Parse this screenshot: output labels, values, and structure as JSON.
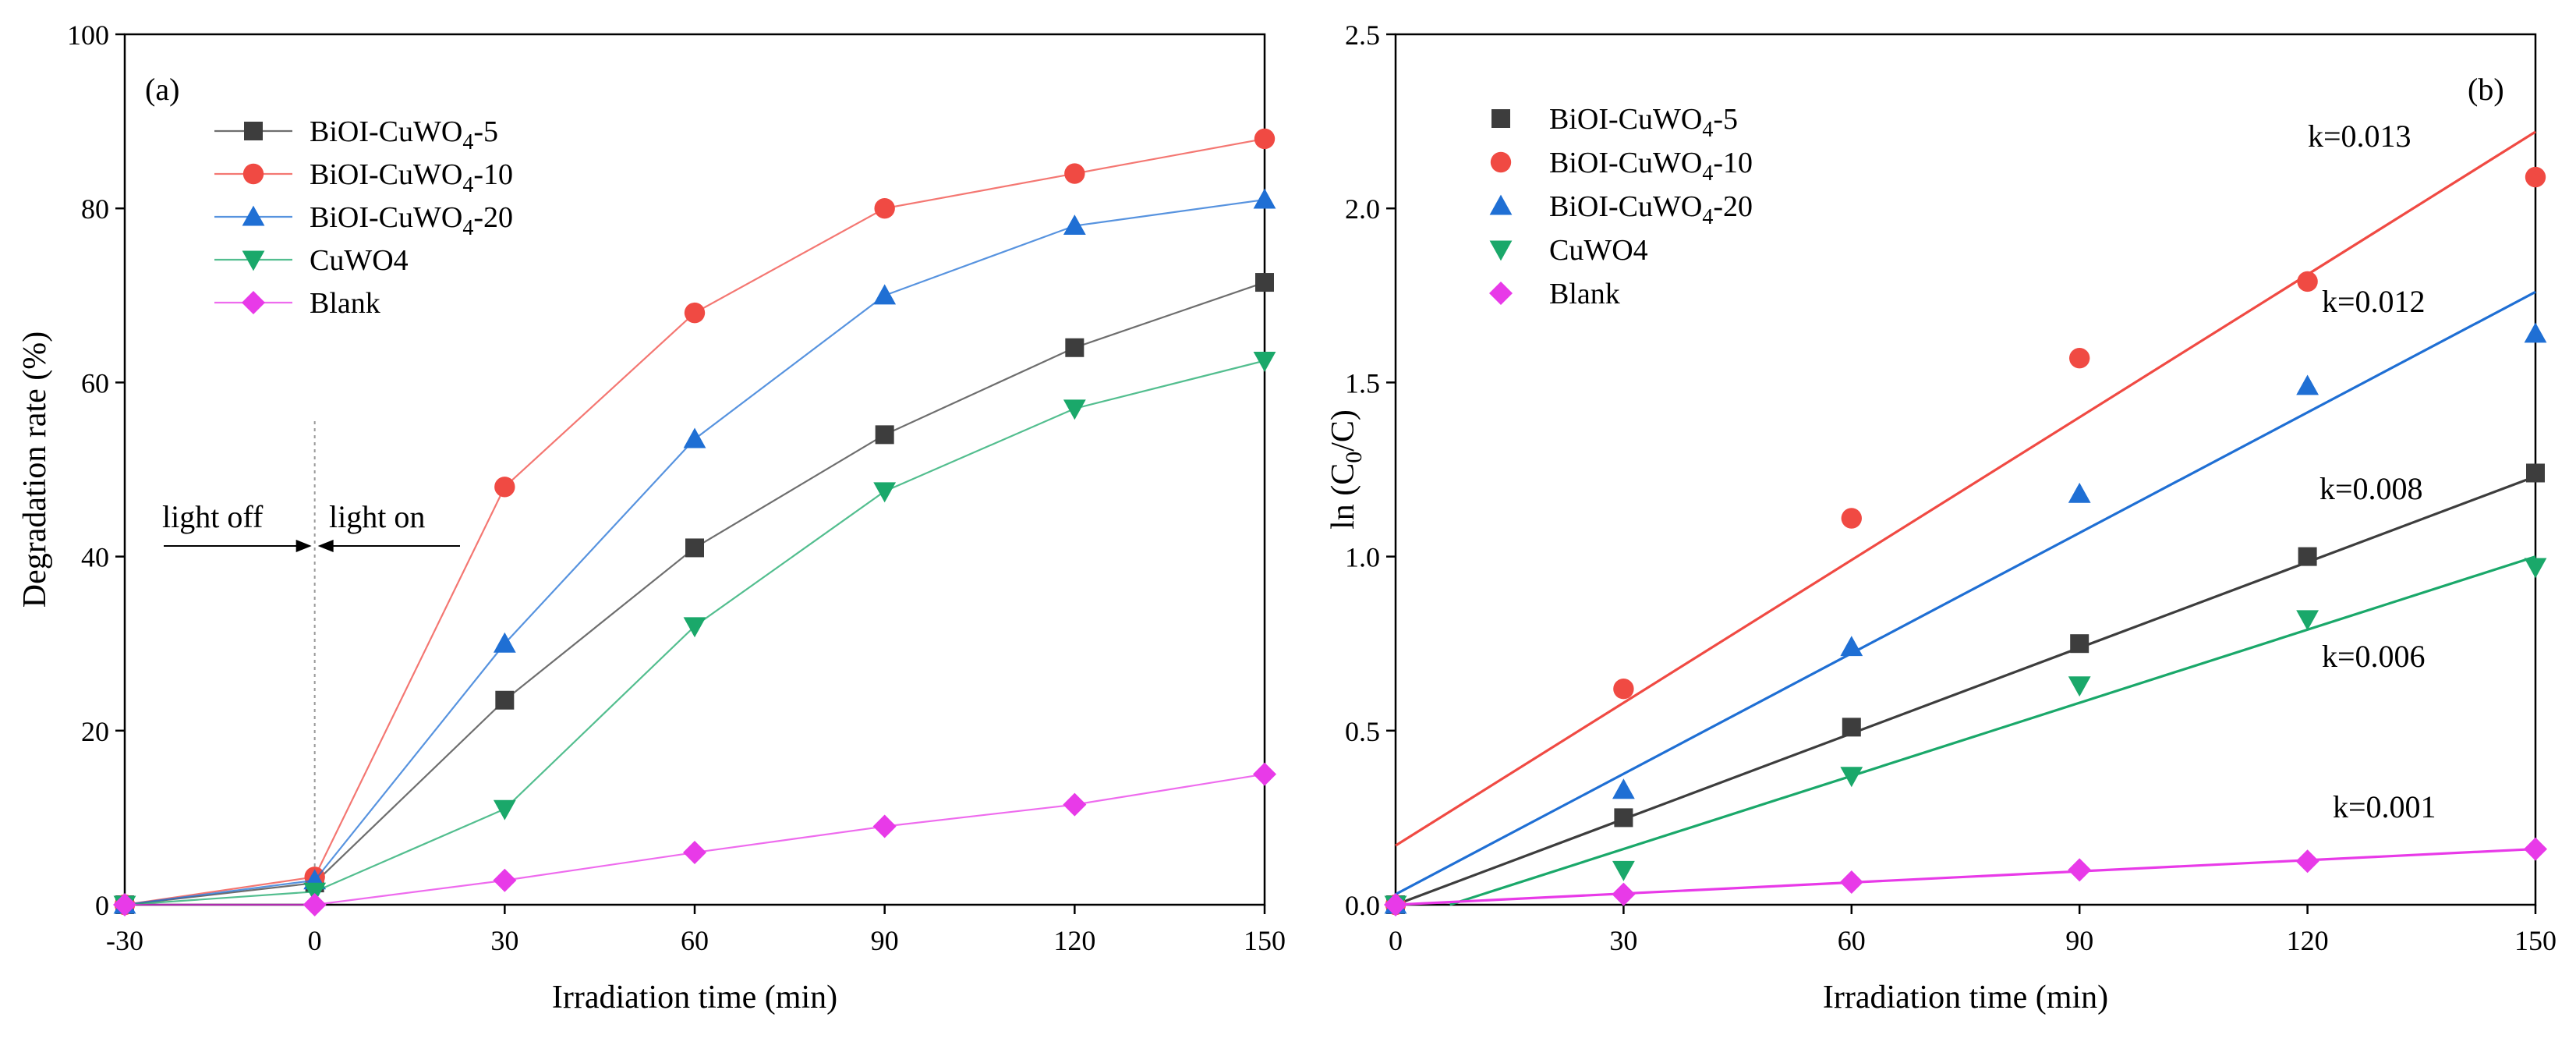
{
  "chart_data": [
    {
      "type": "line",
      "panel_label": "(a)",
      "xlabel": "Irradiation time (min)",
      "ylabel": "Degradation rate (%)",
      "xlim": [
        -30,
        150
      ],
      "ylim": [
        0,
        100
      ],
      "xticks": [
        -30,
        0,
        30,
        60,
        90,
        120,
        150
      ],
      "yticks": [
        0,
        20,
        40,
        60,
        80,
        100
      ],
      "x": [
        -30,
        0,
        30,
        60,
        90,
        120,
        150
      ],
      "series": [
        {
          "name": "BiOI-CuWO",
          "sub": "4",
          "suffix": "-5",
          "marker": "square",
          "color": "#3d3d3d",
          "values": [
            0,
            2.5,
            23.5,
            41,
            54,
            64,
            71.5
          ]
        },
        {
          "name": "BiOI-CuWO",
          "sub": "4",
          "suffix": "-10",
          "marker": "circle",
          "color": "#f04a43",
          "values": [
            0,
            3.2,
            48,
            68,
            80,
            84,
            88
          ]
        },
        {
          "name": "BiOI-CuWO",
          "sub": "4",
          "suffix": "-20",
          "marker": "triangle-up",
          "color": "#1f6fd4",
          "values": [
            0,
            2.8,
            30,
            53.5,
            70,
            78,
            81
          ]
        },
        {
          "name": "CuWO4",
          "sub": "",
          "suffix": "",
          "marker": "triangle-down",
          "color": "#1aa86a",
          "values": [
            0,
            1.5,
            11,
            32,
            47.5,
            57,
            62.5
          ]
        },
        {
          "name": "Blank",
          "sub": "",
          "suffix": "",
          "marker": "diamond",
          "color": "#e83ae8",
          "values": [
            0,
            0,
            2.8,
            6,
            9,
            11.5,
            15
          ]
        }
      ],
      "annotations": {
        "light_off": "light off",
        "light_on": "light on"
      }
    },
    {
      "type": "scatter",
      "panel_label": "(b)",
      "xlabel": "Irradiation time (min)",
      "ylabel_main": "ln (C",
      "ylabel_sub": "0",
      "ylabel_end": "/C)",
      "xlim": [
        0,
        150
      ],
      "ylim": [
        0,
        2.5
      ],
      "xticks": [
        0,
        30,
        60,
        90,
        120,
        150
      ],
      "yticks": [
        0.0,
        0.5,
        1.0,
        1.5,
        2.0,
        2.5
      ],
      "x": [
        0,
        30,
        60,
        90,
        120,
        150
      ],
      "series": [
        {
          "name": "BiOI-CuWO",
          "sub": "4",
          "suffix": "-5",
          "marker": "square",
          "color": "#3d3d3d",
          "values": [
            0,
            0.25,
            0.51,
            0.75,
            1.0,
            1.24
          ],
          "fit": [
            0.0,
            1.23
          ],
          "k": "k=0.008"
        },
        {
          "name": "BiOI-CuWO",
          "sub": "4",
          "suffix": "-10",
          "marker": "circle",
          "color": "#f04a43",
          "values": [
            0,
            0.62,
            1.11,
            1.57,
            1.79,
            2.09
          ],
          "fit": [
            0.17,
            2.22
          ],
          "k": "k=0.013"
        },
        {
          "name": "BiOI-CuWO",
          "sub": "4",
          "suffix": "-20",
          "marker": "triangle-up",
          "color": "#1f6fd4",
          "values": [
            0,
            0.33,
            0.74,
            1.18,
            1.49,
            1.64
          ],
          "fit": [
            0.03,
            1.76
          ],
          "k": "k=0.012"
        },
        {
          "name": "CuWO4",
          "sub": "",
          "suffix": "",
          "marker": "triangle-down",
          "color": "#1aa86a",
          "values": [
            0,
            0.1,
            0.37,
            0.63,
            0.82,
            0.97
          ],
          "fit": [
            -0.05,
            1.0
          ],
          "k": "k=0.006"
        },
        {
          "name": "Blank",
          "sub": "",
          "suffix": "",
          "marker": "diamond",
          "color": "#e83ae8",
          "values": [
            0,
            0.03,
            0.065,
            0.1,
            0.125,
            0.16
          ],
          "fit": [
            0.0,
            0.16
          ],
          "k": "k=0.001"
        }
      ]
    }
  ]
}
